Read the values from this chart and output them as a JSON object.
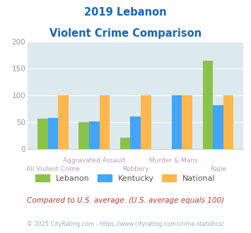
{
  "title_line1": "2019 Lebanon",
  "title_line2": "Violent Crime Comparison",
  "categories": [
    "All Violent Crime",
    "Aggravated Assault",
    "Robbery",
    "Murder & Mans...",
    "Rape"
  ],
  "lebanon": [
    57,
    50,
    22,
    0,
    165
  ],
  "kentucky": [
    58,
    52,
    61,
    100,
    82
  ],
  "national": [
    100,
    100,
    100,
    100,
    100
  ],
  "lebanon_color": "#8bc34a",
  "kentucky_color": "#42a5f5",
  "national_color": "#ffb74d",
  "bg_color": "#dce9ee",
  "ylim": [
    0,
    200
  ],
  "yticks": [
    0,
    50,
    100,
    150,
    200
  ],
  "xlabel_color": "#b0a0b0",
  "title_color": "#1565c0",
  "footer_text": "Compared to U.S. average. (U.S. average equals 100)",
  "copyright_text": "© 2025 CityRating.com - https://www.cityrating.com/crime-statistics/",
  "footer_color": "#c0392b",
  "copyright_color": "#9aabbb",
  "legend_labels": [
    "Lebanon",
    "Kentucky",
    "National"
  ],
  "legend_text_color": "#555555",
  "ytick_color": "#999999"
}
